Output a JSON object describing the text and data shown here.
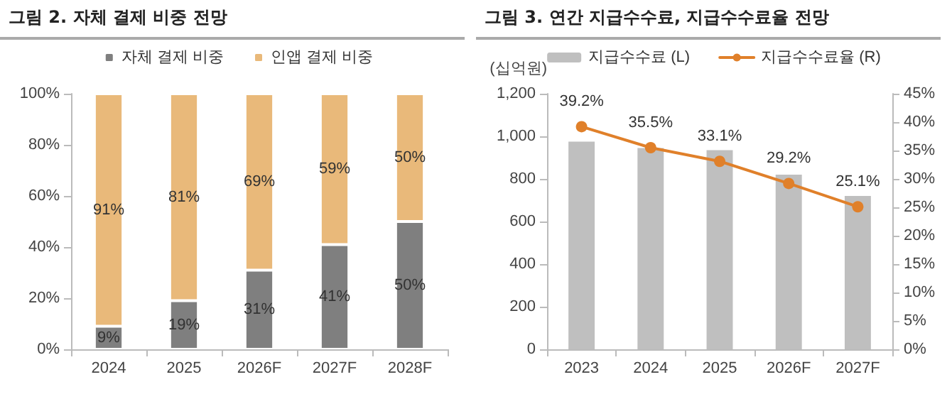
{
  "chart_data": [
    {
      "type": "bar",
      "title": "그림 2. 자체 결제 비중 전망",
      "categories": [
        "2024",
        "2025",
        "2026F",
        "2027F",
        "2028F"
      ],
      "stacked": true,
      "series": [
        {
          "name": "자체 결제 비중",
          "color": "#7f7f7f",
          "values": [
            9,
            19,
            31,
            41,
            50
          ],
          "value_labels": [
            "9%",
            "19%",
            "31%",
            "41%",
            "50%"
          ]
        },
        {
          "name": "인앱 결제 비중",
          "color": "#e9b97a",
          "values": [
            91,
            81,
            69,
            59,
            50
          ],
          "value_labels": [
            "91%",
            "81%",
            "69%",
            "59%",
            "50%"
          ]
        }
      ],
      "ylim": [
        0,
        100
      ],
      "yticks": [
        {
          "value": 0,
          "label": "0%"
        },
        {
          "value": 20,
          "label": "20%"
        },
        {
          "value": 40,
          "label": "40%"
        },
        {
          "value": 60,
          "label": "60%"
        },
        {
          "value": 80,
          "label": "80%"
        },
        {
          "value": 100,
          "label": "100%"
        }
      ],
      "legend": "top",
      "grid": false
    },
    {
      "type": "bar",
      "title": "그림 3. 연간 지급수수료, 지급수수료율 전망",
      "ylabel": "(십억원)",
      "categories": [
        "2023",
        "2024",
        "2025",
        "2026F",
        "2027F"
      ],
      "series": [
        {
          "name": "지급수수료 (L)",
          "color": "#bfbfbf",
          "values": [
            975,
            945,
            935,
            820,
            720
          ]
        },
        {
          "name": "지급수수료율 (R)",
          "type": "line",
          "axis": "y2",
          "color": "#e0802a",
          "values": [
            39.2,
            35.5,
            33.1,
            29.2,
            25.1
          ],
          "value_labels": [
            "39.2%",
            "35.5%",
            "33.1%",
            "29.2%",
            "25.1%"
          ]
        }
      ],
      "ylim": [
        0,
        1200
      ],
      "yticks": [
        0,
        200,
        400,
        600,
        800,
        {
          "value": 1000,
          "label": "1,000"
        },
        {
          "value": 1200,
          "label": "1,200"
        }
      ],
      "y2lim": [
        0,
        45
      ],
      "y2ticks": [
        {
          "value": 0,
          "label": "0%"
        },
        {
          "value": 5,
          "label": "5%"
        },
        {
          "value": 10,
          "label": "10%"
        },
        {
          "value": 15,
          "label": "15%"
        },
        {
          "value": 20,
          "label": "20%"
        },
        {
          "value": 25,
          "label": "25%"
        },
        {
          "value": 30,
          "label": "30%"
        },
        {
          "value": 35,
          "label": "35%"
        },
        {
          "value": 40,
          "label": "40%"
        },
        {
          "value": 45,
          "label": "45%"
        }
      ],
      "legend": "top",
      "grid": false,
      "marker": "circle"
    }
  ]
}
